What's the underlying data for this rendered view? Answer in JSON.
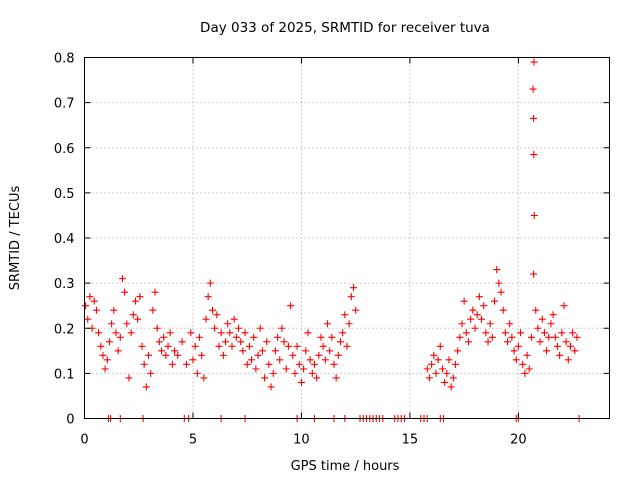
{
  "chart_data": {
    "type": "scatter",
    "title": "Day 033 of 2025, SRMTID for receiver tuva",
    "xlabel": "GPS time / hours",
    "ylabel": "SRMTID / TECUs",
    "xlim": [
      0,
      24.2
    ],
    "ylim": [
      0,
      0.8
    ],
    "xticks": [
      0,
      5,
      10,
      15,
      20
    ],
    "xtick_labels": [
      "0",
      "5",
      "10",
      "15",
      "20"
    ],
    "yticks": [
      0,
      0.1,
      0.2,
      0.3,
      0.4,
      0.5,
      0.6,
      0.7,
      0.8
    ],
    "ytick_labels": [
      "0",
      "0.1",
      "0.2",
      "0.3",
      "0.4",
      "0.5",
      "0.6",
      "0.7",
      "0.8"
    ],
    "grid": true,
    "marker": "+",
    "series": [
      {
        "name": "SRMTID",
        "color": "#ff0000",
        "points": [
          [
            0.05,
            0.25
          ],
          [
            0.15,
            0.22
          ],
          [
            0.25,
            0.27
          ],
          [
            0.35,
            0.2
          ],
          [
            0.45,
            0.26
          ],
          [
            0.55,
            0.24
          ],
          [
            0.65,
            0.19
          ],
          [
            0.75,
            0.16
          ],
          [
            0.85,
            0.14
          ],
          [
            0.95,
            0.11
          ],
          [
            1.05,
            0.13
          ],
          [
            1.15,
            0.17
          ],
          [
            1.25,
            0.21
          ],
          [
            1.35,
            0.24
          ],
          [
            1.45,
            0.19
          ],
          [
            1.55,
            0.15
          ],
          [
            1.65,
            0.18
          ],
          [
            1.75,
            0.31
          ],
          [
            1.85,
            0.28
          ],
          [
            1.95,
            0.21
          ],
          [
            2.05,
            0.09
          ],
          [
            2.15,
            0.19
          ],
          [
            2.25,
            0.23
          ],
          [
            2.35,
            0.26
          ],
          [
            2.45,
            0.22
          ],
          [
            2.55,
            0.27
          ],
          [
            2.65,
            0.16
          ],
          [
            2.75,
            0.12
          ],
          [
            2.85,
            0.07
          ],
          [
            2.95,
            0.14
          ],
          [
            3.05,
            0.1
          ],
          [
            3.15,
            0.24
          ],
          [
            3.25,
            0.28
          ],
          [
            3.35,
            0.2
          ],
          [
            3.45,
            0.17
          ],
          [
            3.55,
            0.15
          ],
          [
            3.65,
            0.18
          ],
          [
            3.75,
            0.14
          ],
          [
            3.85,
            0.16
          ],
          [
            3.95,
            0.19
          ],
          [
            4.05,
            0.12
          ],
          [
            4.15,
            0.15
          ],
          [
            4.3,
            0.14
          ],
          [
            4.5,
            0.17
          ],
          [
            4.7,
            0.12
          ],
          [
            4.9,
            0.19
          ],
          [
            5.0,
            0.13
          ],
          [
            5.1,
            0.16
          ],
          [
            5.2,
            0.1
          ],
          [
            5.3,
            0.18
          ],
          [
            5.4,
            0.14
          ],
          [
            5.5,
            0.09
          ],
          [
            5.6,
            0.22
          ],
          [
            5.7,
            0.27
          ],
          [
            5.8,
            0.3
          ],
          [
            5.9,
            0.24
          ],
          [
            6.0,
            0.2
          ],
          [
            6.1,
            0.23
          ],
          [
            6.2,
            0.16
          ],
          [
            6.3,
            0.19
          ],
          [
            6.4,
            0.14
          ],
          [
            6.5,
            0.17
          ],
          [
            6.6,
            0.21
          ],
          [
            6.7,
            0.19
          ],
          [
            6.8,
            0.16
          ],
          [
            6.9,
            0.22
          ],
          [
            7.0,
            0.18
          ],
          [
            7.1,
            0.2
          ],
          [
            7.2,
            0.17
          ],
          [
            7.3,
            0.15
          ],
          [
            7.4,
            0.19
          ],
          [
            7.5,
            0.12
          ],
          [
            7.6,
            0.16
          ],
          [
            7.7,
            0.13
          ],
          [
            7.8,
            0.18
          ],
          [
            7.9,
            0.11
          ],
          [
            8.0,
            0.14
          ],
          [
            8.1,
            0.2
          ],
          [
            8.2,
            0.15
          ],
          [
            8.3,
            0.09
          ],
          [
            8.4,
            0.17
          ],
          [
            8.5,
            0.12
          ],
          [
            8.6,
            0.07
          ],
          [
            8.7,
            0.1
          ],
          [
            8.8,
            0.15
          ],
          [
            8.9,
            0.18
          ],
          [
            9.0,
            0.13
          ],
          [
            9.1,
            0.2
          ],
          [
            9.2,
            0.17
          ],
          [
            9.3,
            0.11
          ],
          [
            9.4,
            0.16
          ],
          [
            9.5,
            0.25
          ],
          [
            9.6,
            0.14
          ],
          [
            9.7,
            0.1
          ],
          [
            9.8,
            0.16
          ],
          [
            9.9,
            0.12
          ],
          [
            10.0,
            0.08
          ],
          [
            10.1,
            0.11
          ],
          [
            10.2,
            0.15
          ],
          [
            10.3,
            0.19
          ],
          [
            10.4,
            0.13
          ],
          [
            10.5,
            0.1
          ],
          [
            10.6,
            0.12
          ],
          [
            10.7,
            0.09
          ],
          [
            10.8,
            0.14
          ],
          [
            10.9,
            0.18
          ],
          [
            11.0,
            0.16
          ],
          [
            11.1,
            0.13
          ],
          [
            11.2,
            0.21
          ],
          [
            11.3,
            0.15
          ],
          [
            11.4,
            0.18
          ],
          [
            11.5,
            0.12
          ],
          [
            11.6,
            0.09
          ],
          [
            11.7,
            0.14
          ],
          [
            11.8,
            0.17
          ],
          [
            11.9,
            0.19
          ],
          [
            12.0,
            0.23
          ],
          [
            12.1,
            0.16
          ],
          [
            12.2,
            0.21
          ],
          [
            12.3,
            0.27
          ],
          [
            12.4,
            0.29
          ],
          [
            12.5,
            0.24
          ],
          [
            15.8,
            0.11
          ],
          [
            15.9,
            0.09
          ],
          [
            16.0,
            0.12
          ],
          [
            16.1,
            0.14
          ],
          [
            16.2,
            0.1
          ],
          [
            16.3,
            0.13
          ],
          [
            16.4,
            0.16
          ],
          [
            16.5,
            0.11
          ],
          [
            16.6,
            0.08
          ],
          [
            16.7,
            0.1
          ],
          [
            16.8,
            0.13
          ],
          [
            16.9,
            0.07
          ],
          [
            17.0,
            0.09
          ],
          [
            17.1,
            0.12
          ],
          [
            17.2,
            0.15
          ],
          [
            17.3,
            0.18
          ],
          [
            17.4,
            0.21
          ],
          [
            17.5,
            0.26
          ],
          [
            17.6,
            0.19
          ],
          [
            17.7,
            0.17
          ],
          [
            17.8,
            0.22
          ],
          [
            17.9,
            0.24
          ],
          [
            18.0,
            0.2
          ],
          [
            18.1,
            0.23
          ],
          [
            18.2,
            0.27
          ],
          [
            18.3,
            0.22
          ],
          [
            18.4,
            0.25
          ],
          [
            18.5,
            0.19
          ],
          [
            18.6,
            0.17
          ],
          [
            18.7,
            0.21
          ],
          [
            18.8,
            0.18
          ],
          [
            18.9,
            0.26
          ],
          [
            19.0,
            0.33
          ],
          [
            19.1,
            0.3
          ],
          [
            19.2,
            0.28
          ],
          [
            19.3,
            0.24
          ],
          [
            19.4,
            0.19
          ],
          [
            19.5,
            0.17
          ],
          [
            19.6,
            0.21
          ],
          [
            19.7,
            0.18
          ],
          [
            19.8,
            0.15
          ],
          [
            19.9,
            0.13
          ],
          [
            20.0,
            0.16
          ],
          [
            20.1,
            0.19
          ],
          [
            20.2,
            0.12
          ],
          [
            20.3,
            0.1
          ],
          [
            20.4,
            0.14
          ],
          [
            20.5,
            0.11
          ],
          [
            20.6,
            0.18
          ],
          [
            20.7,
            0.32
          ],
          [
            20.8,
            0.24
          ],
          [
            20.9,
            0.2
          ],
          [
            21.0,
            0.17
          ],
          [
            21.1,
            0.22
          ],
          [
            21.2,
            0.19
          ],
          [
            21.3,
            0.15
          ],
          [
            21.4,
            0.18
          ],
          [
            21.5,
            0.21
          ],
          [
            21.6,
            0.23
          ],
          [
            21.7,
            0.18
          ],
          [
            21.8,
            0.16
          ],
          [
            21.9,
            0.14
          ],
          [
            22.0,
            0.19
          ],
          [
            22.1,
            0.25
          ],
          [
            22.2,
            0.17
          ],
          [
            22.3,
            0.13
          ],
          [
            22.4,
            0.16
          ],
          [
            22.5,
            0.19
          ],
          [
            22.6,
            0.15
          ],
          [
            22.7,
            0.18
          ],
          [
            20.72,
            0.79
          ],
          [
            20.68,
            0.73
          ],
          [
            20.7,
            0.665
          ],
          [
            20.71,
            0.585
          ],
          [
            20.73,
            0.45
          ],
          [
            1.1,
            0
          ],
          [
            1.2,
            0
          ],
          [
            1.65,
            0
          ],
          [
            2.7,
            0
          ],
          [
            4.6,
            0
          ],
          [
            4.8,
            0
          ],
          [
            6.3,
            0
          ],
          [
            7.4,
            0
          ],
          [
            9.8,
            0
          ],
          [
            10.6,
            0
          ],
          [
            11.5,
            0
          ],
          [
            12.0,
            0
          ],
          [
            12.7,
            0
          ],
          [
            12.85,
            0
          ],
          [
            13.0,
            0
          ],
          [
            13.15,
            0
          ],
          [
            13.3,
            0
          ],
          [
            13.45,
            0
          ],
          [
            13.6,
            0
          ],
          [
            13.75,
            0
          ],
          [
            14.3,
            0
          ],
          [
            14.45,
            0
          ],
          [
            14.6,
            0
          ],
          [
            14.75,
            0
          ],
          [
            15.5,
            0
          ],
          [
            15.65,
            0
          ],
          [
            15.8,
            0
          ],
          [
            16.4,
            0
          ],
          [
            16.55,
            0
          ],
          [
            19.9,
            0
          ],
          [
            20.0,
            0
          ],
          [
            22.8,
            0
          ]
        ]
      }
    ]
  }
}
